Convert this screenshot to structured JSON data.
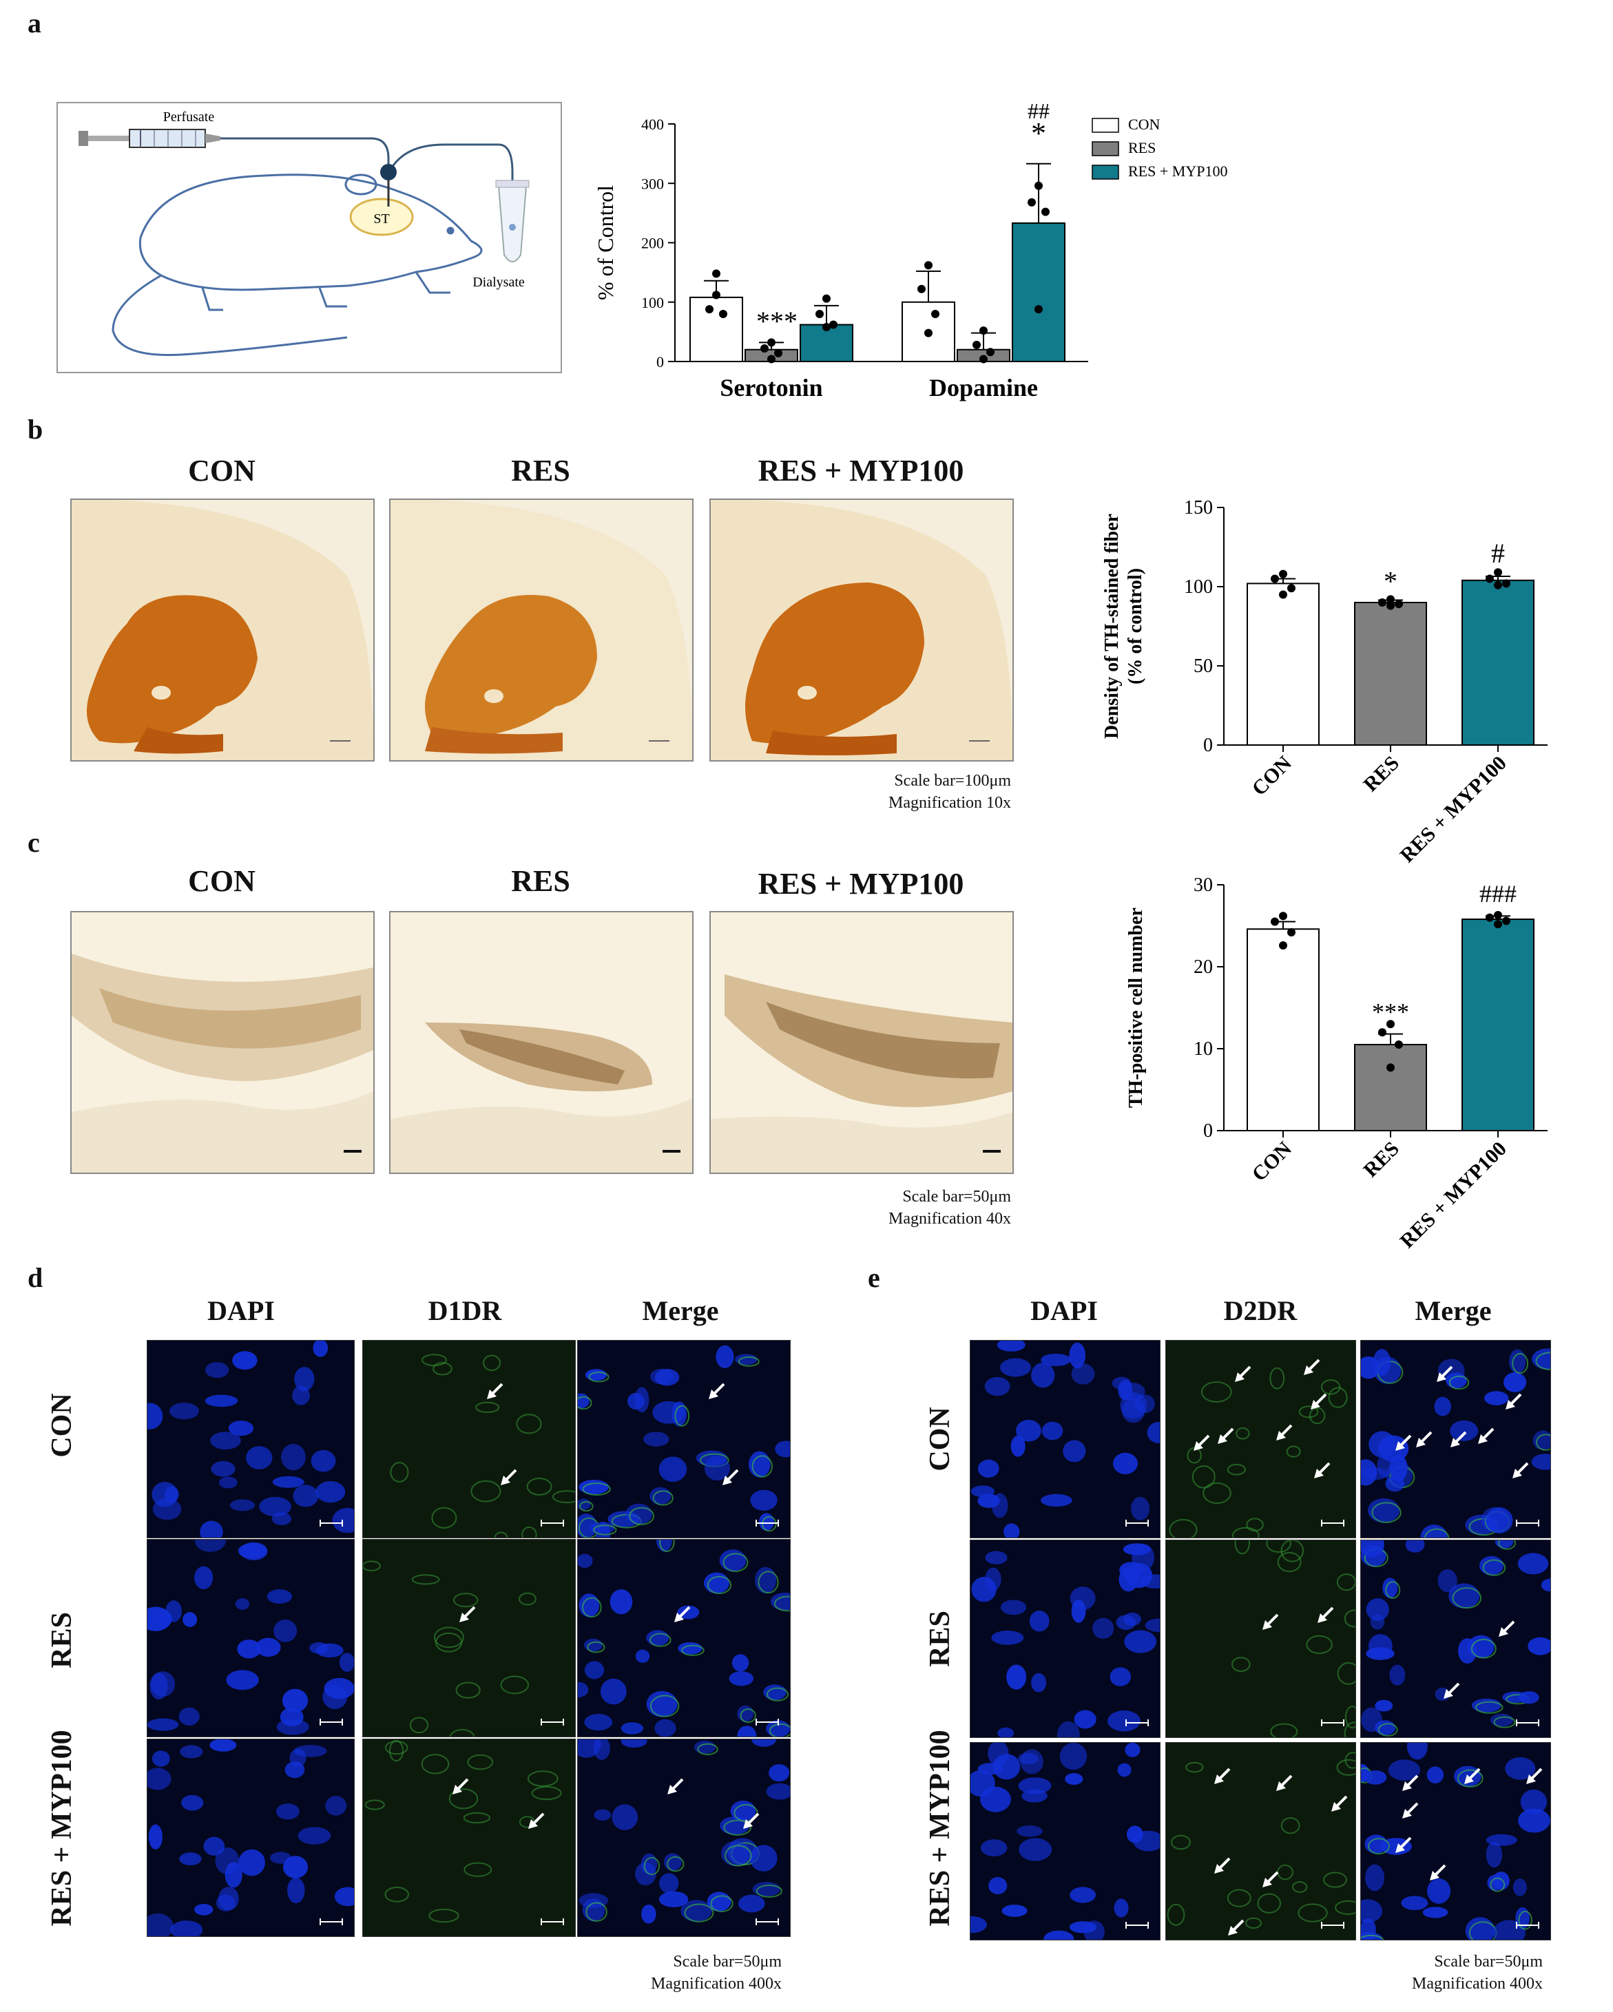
{
  "panels": {
    "a": "a",
    "b": "b",
    "c": "c",
    "d": "d",
    "e": "e"
  },
  "schematic": {
    "perfusate": "Perfusate",
    "st": "ST",
    "dialysate": "Dialysate"
  },
  "chart_data": [
    {
      "type": "bar",
      "panel": "a",
      "categories": [
        "Serotonin",
        "Dopamine"
      ],
      "series": [
        {
          "name": "CON",
          "color": "#ffffff",
          "values": [
            108,
            100
          ],
          "errors": [
            28,
            52
          ],
          "points": [
            [
              148,
              88,
              80,
              112
            ],
            [
              162,
              122,
              80,
              48
            ]
          ]
        },
        {
          "name": "RES",
          "color": "#7f7f7f",
          "values": [
            20,
            20
          ],
          "errors": [
            12,
            28
          ],
          "points": [
            [
              32,
              22,
              14,
              4
            ],
            [
              52,
              28,
              16,
              4
            ]
          ]
        },
        {
          "name": "RES + MYP100",
          "color": "#117a8b",
          "values": [
            62,
            233
          ],
          "errors": [
            32,
            100
          ],
          "points": [
            [
              106,
              80,
              62,
              58
            ],
            [
              296,
              268,
              252,
              88
            ]
          ]
        }
      ],
      "annotations": [
        {
          "category": "Serotonin",
          "series": "RES",
          "text": "***"
        },
        {
          "category": "Dopamine",
          "series": "RES + MYP100",
          "text": "*"
        },
        {
          "category": "Dopamine",
          "series": "RES + MYP100",
          "text": "##"
        }
      ],
      "ylabel": "% of Control",
      "ylim": [
        0,
        400
      ],
      "yticks": [
        "0",
        "100",
        "200",
        "300",
        "400"
      ],
      "legend": "top-right"
    },
    {
      "type": "bar",
      "panel": "b",
      "categories": [
        "CON",
        "RES",
        "RES + MYP100"
      ],
      "values": [
        102,
        90,
        104
      ],
      "errors": [
        3,
        1.5,
        2.5
      ],
      "points": [
        [
          108,
          105,
          99,
          95
        ],
        [
          92,
          90,
          89,
          88
        ],
        [
          109,
          105,
          102,
          101
        ]
      ],
      "colors": [
        "#ffffff",
        "#7f7f7f",
        "#117a8b"
      ],
      "annotations": [
        {
          "category": "RES",
          "text": "*"
        },
        {
          "category": "RES + MYP100",
          "text": "#"
        }
      ],
      "ylabel": "Density of TH-stained fiber\n(% of control)",
      "ylim": [
        0,
        150
      ],
      "yticks": [
        "0",
        "50",
        "100",
        "150"
      ]
    },
    {
      "type": "bar",
      "panel": "c",
      "categories": [
        "CON",
        "RES",
        "RES + MYP100"
      ],
      "values": [
        24.6,
        10.5,
        25.8
      ],
      "errors": [
        0.9,
        1.3,
        0.4
      ],
      "points": [
        [
          26.2,
          25.5,
          24.2,
          22.6
        ],
        [
          13,
          12,
          10.5,
          7.7
        ],
        [
          26.3,
          26,
          25.6,
          25.2
        ]
      ],
      "colors": [
        "#ffffff",
        "#7f7f7f",
        "#117a8b"
      ],
      "annotations": [
        {
          "category": "RES",
          "text": "***"
        },
        {
          "category": "RES + MYP100",
          "text": "###"
        }
      ],
      "ylabel": "TH-positive cell number",
      "ylim": [
        0,
        30
      ],
      "yticks": [
        "0",
        "10",
        "20",
        "30"
      ]
    }
  ],
  "b_section": {
    "columns": [
      "CON",
      "RES",
      "RES + MYP100"
    ],
    "scale_text": "Scale bar=100μm",
    "mag_text": "Magnification 10x"
  },
  "c_section": {
    "columns": [
      "CON",
      "RES",
      "RES + MYP100"
    ],
    "scale_text": "Scale bar=50μm",
    "mag_text": "Magnification 40x"
  },
  "d_section": {
    "columns": [
      "DAPI",
      "D1DR",
      "Merge"
    ],
    "rows": [
      "CON",
      "RES",
      "RES + MYP100"
    ],
    "scale_text": "Scale bar=50μm",
    "mag_text": "Magnification 400x"
  },
  "e_section": {
    "columns": [
      "DAPI",
      "D2DR",
      "Merge"
    ],
    "rows": [
      "CON",
      "RES",
      "RES + MYP100"
    ],
    "scale_text": "Scale bar=50μm",
    "mag_text": "Magnification 400x"
  },
  "colors": {
    "con": "#ffffff",
    "res": "#7f7f7f",
    "myp": "#117a8b",
    "brain_stain": "#c66a12",
    "dapi": "#0a1a9a",
    "receptor": "#2f9a2f"
  }
}
